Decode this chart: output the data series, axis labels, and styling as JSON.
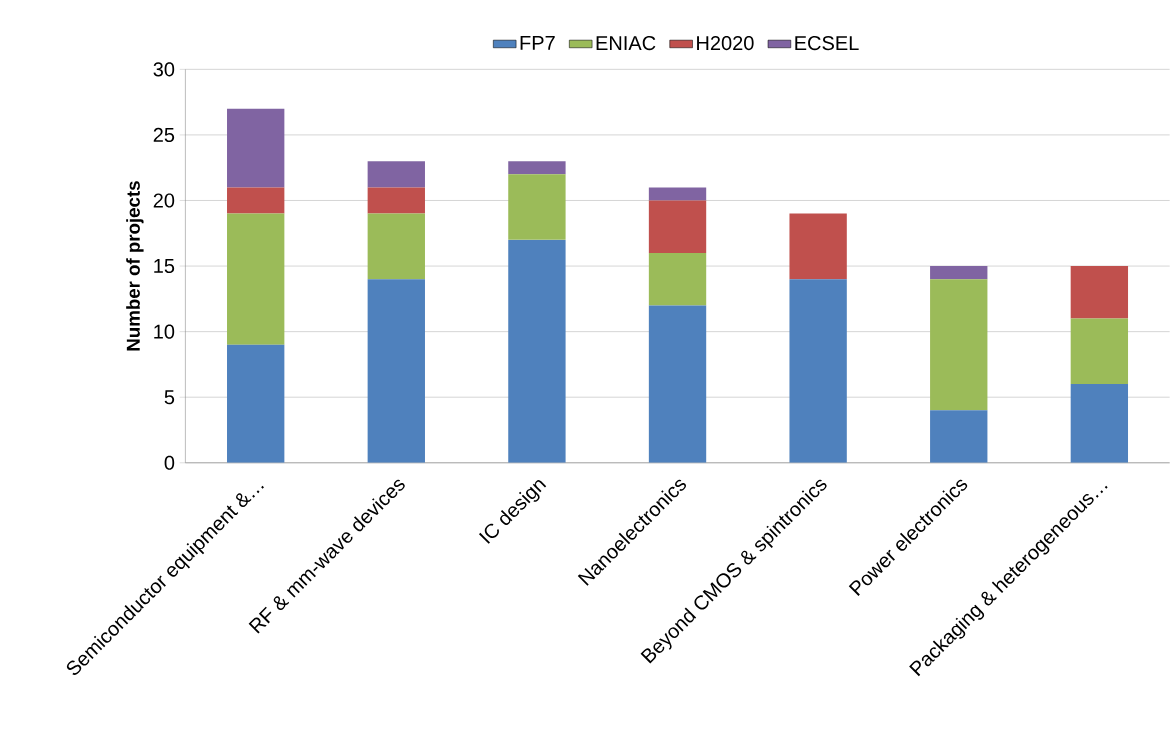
{
  "chart_data": {
    "type": "bar",
    "stacked": true,
    "ylabel": "Number of projects",
    "categories": [
      "Semiconductor equipment &…",
      "RF & mm-wave devices",
      "IC design",
      "Nanoelectronics",
      "Beyond CMOS & spintronics",
      "Power electronics",
      "Packaging & heterogeneous…"
    ],
    "series": [
      {
        "name": "FP7",
        "color": "#4f81bd",
        "values": [
          9,
          14,
          17,
          12,
          14,
          4,
          6
        ]
      },
      {
        "name": "ENIAC",
        "color": "#9bbb59",
        "values": [
          10,
          5,
          5,
          4,
          0,
          10,
          5
        ]
      },
      {
        "name": "H2020",
        "color": "#c0504d",
        "values": [
          2,
          2,
          0,
          4,
          5,
          0,
          4
        ]
      },
      {
        "name": "ECSEL",
        "color": "#8064a2",
        "values": [
          6,
          2,
          1,
          1,
          0,
          1,
          0
        ]
      }
    ],
    "ylim": [
      0,
      30
    ],
    "yticks": [
      0,
      5,
      10,
      15,
      20,
      25,
      30
    ],
    "grid": "y",
    "legend": "top"
  }
}
